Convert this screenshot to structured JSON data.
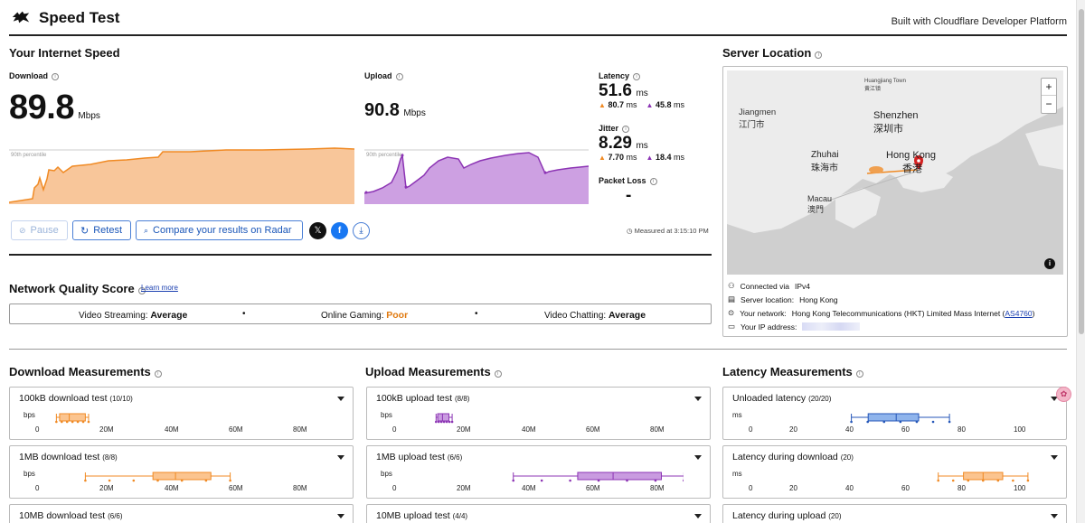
{
  "app": {
    "title": "Speed Test",
    "built_with": "Built with Cloudflare Developer Platform"
  },
  "speed": {
    "section_title": "Your Internet Speed",
    "download": {
      "label": "Download",
      "value": "89.8",
      "unit": "Mbps",
      "percentile": "90th percentile"
    },
    "upload": {
      "label": "Upload",
      "value": "90.8",
      "unit": "Mbps",
      "percentile": "90th percentile"
    },
    "latency": {
      "label": "Latency",
      "value": "51.6",
      "unit": "ms",
      "down": "80.7",
      "up": "45.8",
      "sub_unit": "ms"
    },
    "jitter": {
      "label": "Jitter",
      "value": "8.29",
      "unit": "ms",
      "down": "7.70",
      "up": "18.4",
      "sub_unit": "ms"
    },
    "packet_loss": {
      "label": "Packet Loss",
      "value": "-"
    },
    "buttons": {
      "pause": "Pause",
      "retest": "Retest",
      "compare": "Compare your results on Radar"
    },
    "measured_at": "Measured at 3:15:10 PM"
  },
  "server": {
    "title": "Server Location",
    "map_labels": {
      "jiangmen": "Jiangmen",
      "jiangmen_cn": "江门市",
      "shenzhen": "Shenzhen",
      "shenzhen_cn": "深圳市",
      "zhuhai": "Zhuhai",
      "zhuhai_cn": "珠海市",
      "macau": "Macau",
      "macau_cn": "澳門",
      "hongkong": "Hong Kong",
      "hongkong_cn": "香港",
      "huangjiang": "Huangjiang Town",
      "huangjiang_cn": "黄江镇",
      "zoom_in": "+",
      "zoom_out": "−"
    },
    "info": {
      "connected_label": "Connected via",
      "connected_value": "IPv4",
      "location_label": "Server location:",
      "location_value": "Hong Kong",
      "network_label": "Your network:",
      "network_value": "Hong Kong Telecommunications (HKT) Limited Mass Internet (",
      "network_asn": "AS4760",
      "network_close": ")",
      "ip_label": "Your IP address:"
    }
  },
  "quality": {
    "title": "Network Quality Score",
    "learn_more": "Learn more",
    "streaming_label": "Video Streaming:",
    "streaming_value": "Average",
    "gaming_label": "Online Gaming:",
    "gaming_value": "Poor",
    "chatting_label": "Video Chatting:",
    "chatting_value": "Average",
    "bullet": "•"
  },
  "measurements": {
    "download": {
      "title": "Download Measurements",
      "items": [
        {
          "name": "100kB download test",
          "count": "(10/10)"
        },
        {
          "name": "1MB download test",
          "count": "(8/8)"
        },
        {
          "name": "10MB download test",
          "count": "(6/6)"
        }
      ]
    },
    "upload": {
      "title": "Upload Measurements",
      "items": [
        {
          "name": "100kB upload test",
          "count": "(8/8)"
        },
        {
          "name": "1MB upload test",
          "count": "(6/6)"
        },
        {
          "name": "10MB upload test",
          "count": "(4/4)"
        }
      ]
    },
    "latency": {
      "title": "Latency Measurements",
      "items": [
        {
          "name": "Unloaded latency",
          "count": "(20/20)"
        },
        {
          "name": "Latency during download",
          "count": "(20)"
        },
        {
          "name": "Latency during upload",
          "count": "(20)"
        }
      ]
    },
    "bps_axis": {
      "unit": "bps",
      "ticks": [
        "0",
        "20M",
        "40M",
        "60M",
        "80M"
      ]
    },
    "ms_axis": {
      "unit": "ms",
      "ticks": [
        "0",
        "20",
        "40",
        "60",
        "80",
        "100"
      ]
    },
    "boxes": {
      "dl_100kb": {
        "min": 6,
        "q1": 7,
        "median": 10,
        "q3": 15,
        "max": 16
      },
      "dl_1mb": {
        "min": 15,
        "q1": 36,
        "median": 43,
        "q3": 54,
        "max": 60
      },
      "ul_100kb": {
        "min": 13,
        "q1": 13.5,
        "median": 15,
        "q3": 17,
        "max": 18
      },
      "ul_1mb": {
        "min": 37,
        "q1": 57,
        "median": 68,
        "q3": 83,
        "max": 90
      },
      "lat_unloaded": {
        "min": 36,
        "q1": 42,
        "median": 52,
        "q3": 60,
        "max": 71
      },
      "lat_download": {
        "min": 67,
        "q1": 76,
        "median": 83,
        "q3": 90,
        "max": 99
      }
    }
  },
  "colors": {
    "download": "#f08a24",
    "upload": "#8c34b4",
    "latency": "#3a78d4"
  }
}
